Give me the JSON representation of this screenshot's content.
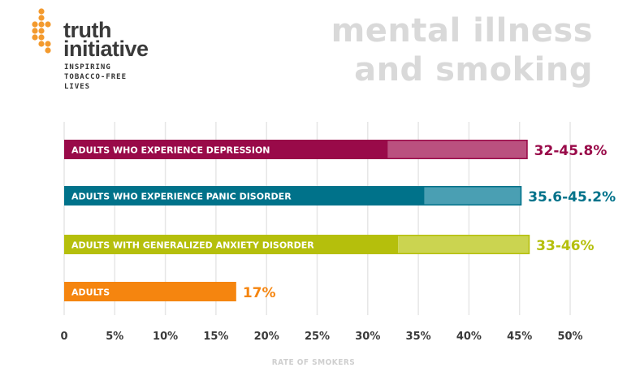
{
  "brand": {
    "name_line1": "truth",
    "name_line2": "initiative",
    "tagline_lines": [
      "INSPIRING",
      "TOBACCO-FREE",
      "LIVES"
    ],
    "color": "#f39a2e"
  },
  "chart_data": {
    "type": "bar",
    "orientation": "horizontal",
    "title_lines": [
      "mental illness",
      "and smoking"
    ],
    "xlabel": "RATE OF SMOKERS",
    "xlim": [
      0,
      50
    ],
    "xticks": [
      "0",
      "5%",
      "10%",
      "15%",
      "20%",
      "25%",
      "30%",
      "35%",
      "40%",
      "45%",
      "50%"
    ],
    "grid": true,
    "categories": [
      "ADULTS WHO EXPERIENCE DEPRESSION",
      "ADULTS WHO EXPERIENCE PANIC DISORDER",
      "ADULTS WITH GENERALIZED ANXIETY DISORDER",
      "ADULTS"
    ],
    "ranges": [
      {
        "low": 32,
        "high": 45.8,
        "label": "32-45.8%",
        "color": "#990a49",
        "light": "#ba517f"
      },
      {
        "low": 35.6,
        "high": 45.2,
        "label": "35.6-45.2%",
        "color": "#00728a",
        "light": "#4a9fb3"
      },
      {
        "low": 33,
        "high": 46,
        "label": "33-46%",
        "color": "#b5bf0c",
        "light": "#cbd450"
      },
      {
        "low": 17,
        "high": 17,
        "label": "17%",
        "color": "#f5850f",
        "light": "#f5850f"
      }
    ]
  }
}
